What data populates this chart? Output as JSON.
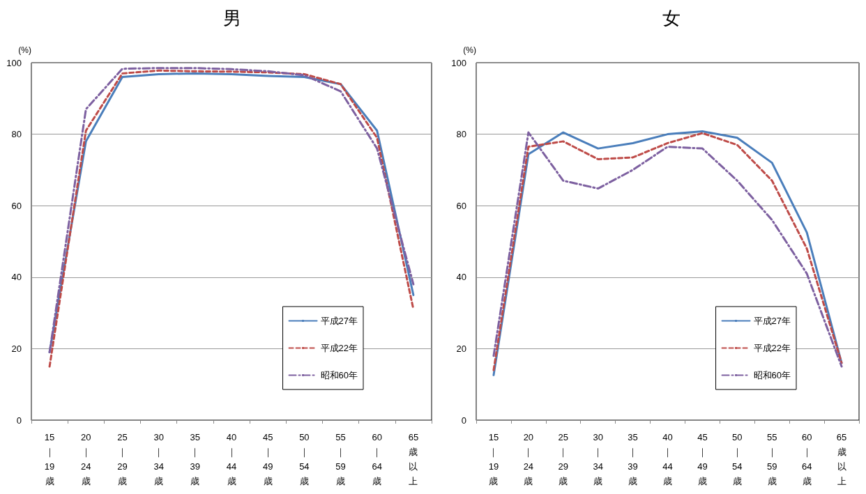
{
  "chart_data": [
    {
      "type": "line",
      "title": "男",
      "ylabel": "(%)",
      "categories": [
        "15｜19歳",
        "20｜24歳",
        "25｜29歳",
        "30｜34歳",
        "35｜39歳",
        "40｜44歳",
        "45｜49歳",
        "50｜54歳",
        "55｜59歳",
        "60｜64歳",
        "65歳以上"
      ],
      "ylim": [
        0,
        100
      ],
      "yticks": [
        0,
        20,
        40,
        60,
        80,
        100
      ],
      "grid": "y",
      "legend": "bottom right",
      "marker": "none",
      "series": [
        {
          "name": "平成27年",
          "color": "#4a7ebb",
          "line_style": "solid",
          "values": [
            19,
            78,
            96,
            96.8,
            97,
            96.8,
            96.3,
            96,
            94,
            81,
            35
          ]
        },
        {
          "name": "平成22年",
          "color": "#be4b48",
          "line_style": "dashed",
          "values": [
            15,
            81,
            97,
            97.8,
            97.6,
            97.5,
            97.3,
            96.8,
            94,
            79,
            31
          ]
        },
        {
          "name": "昭和60年",
          "color": "#7d60a0",
          "line_style": "dashdot",
          "values": [
            19,
            87,
            98.3,
            98.5,
            98.5,
            98.2,
            97.6,
            96.5,
            92,
            76,
            38
          ]
        }
      ]
    },
    {
      "type": "line",
      "title": "女",
      "ylabel": "(%)",
      "categories": [
        "15｜19歳",
        "20｜24歳",
        "25｜29歳",
        "30｜34歳",
        "35｜39歳",
        "40｜44歳",
        "45｜49歳",
        "50｜54歳",
        "55｜59歳",
        "60｜64歳",
        "65歳以上"
      ],
      "ylim": [
        0,
        100
      ],
      "yticks": [
        0,
        20,
        40,
        60,
        80,
        100
      ],
      "grid": "y",
      "legend": "bottom right",
      "marker": "none",
      "series": [
        {
          "name": "平成27年",
          "color": "#4a7ebb",
          "line_style": "solid",
          "values": [
            12.6,
            74.4,
            80.5,
            76,
            77.5,
            80,
            80.8,
            79,
            72,
            52.5,
            16
          ]
        },
        {
          "name": "平成22年",
          "color": "#be4b48",
          "line_style": "dashed",
          "values": [
            14,
            76.5,
            78,
            73,
            73.5,
            77.5,
            80.3,
            77,
            67,
            48,
            16
          ]
        },
        {
          "name": "昭和60年",
          "color": "#7d60a0",
          "line_style": "dashdot",
          "values": [
            18,
            80.5,
            67,
            64.8,
            70,
            76.5,
            76,
            67,
            56,
            41,
            15
          ]
        }
      ]
    }
  ]
}
